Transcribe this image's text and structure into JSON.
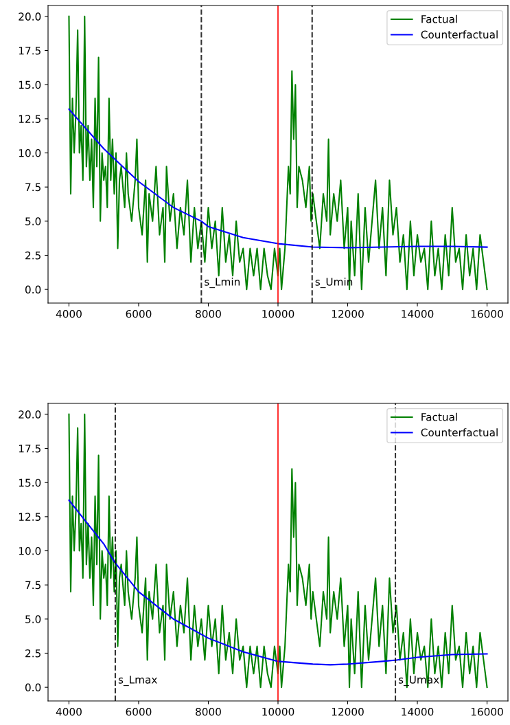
{
  "chart_data": [
    {
      "type": "line",
      "xlim": [
        3400,
        16600
      ],
      "ylim": [
        -1,
        20.8
      ],
      "xticks": [
        4000,
        6000,
        8000,
        10000,
        12000,
        14000,
        16000
      ],
      "yticks": [
        {
          "value": 0,
          "label": "0.0"
        },
        {
          "value": 2.5,
          "label": "2.5"
        },
        {
          "value": 5,
          "label": "5.0"
        },
        {
          "value": 7.5,
          "label": "7.5"
        },
        {
          "value": 10,
          "label": "10.0"
        },
        {
          "value": 12.5,
          "label": "12.5"
        },
        {
          "value": 15,
          "label": "15.0"
        },
        {
          "value": 17.5,
          "label": "17.5"
        },
        {
          "value": 20,
          "label": "20.0"
        }
      ],
      "legend": "top right",
      "grid": false,
      "series": [
        {
          "name": "Factual",
          "color": "#008000",
          "x": [
            4000,
            4050,
            4100,
            4150,
            4200,
            4250,
            4300,
            4350,
            4400,
            4450,
            4500,
            4550,
            4600,
            4650,
            4700,
            4750,
            4800,
            4850,
            4900,
            4950,
            5000,
            5050,
            5100,
            5150,
            5200,
            5250,
            5300,
            5350,
            5400,
            5450,
            5500,
            5600,
            5650,
            5700,
            5800,
            5900,
            5950,
            6000,
            6100,
            6200,
            6250,
            6300,
            6400,
            6500,
            6600,
            6700,
            6750,
            6800,
            6900,
            7000,
            7100,
            7200,
            7300,
            7400,
            7500,
            7600,
            7700,
            7800,
            7900,
            8000,
            8100,
            8200,
            8300,
            8400,
            8500,
            8600,
            8700,
            8800,
            8900,
            9000,
            9100,
            9200,
            9300,
            9400,
            9500,
            9600,
            9700,
            9800,
            9900,
            10000,
            10050,
            10100,
            10200,
            10250,
            10300,
            10350,
            10400,
            10450,
            10500,
            10550,
            10600,
            10700,
            10800,
            10900,
            10950,
            11000,
            11100,
            11200,
            11300,
            11400,
            11450,
            11500,
            11600,
            11700,
            11800,
            11900,
            12000,
            12050,
            12100,
            12200,
            12300,
            12400,
            12500,
            12600,
            12700,
            12800,
            12900,
            13000,
            13100,
            13200,
            13300,
            13400,
            13500,
            13600,
            13700,
            13800,
            13900,
            14000,
            14100,
            14200,
            14300,
            14400,
            14500,
            14600,
            14700,
            14800,
            14900,
            15000,
            15100,
            15200,
            15300,
            15400,
            15500,
            15600,
            15700,
            15800,
            15900,
            16000
          ],
          "values": [
            20,
            7,
            14,
            10,
            13,
            19,
            10,
            12,
            8,
            20,
            9,
            12,
            8,
            11,
            6,
            14,
            9,
            17,
            5,
            10,
            8,
            9,
            6,
            14,
            8,
            11,
            7,
            10,
            3,
            8,
            9,
            6,
            10,
            7,
            5,
            8,
            11,
            6,
            4,
            8,
            2,
            7,
            5,
            9,
            4,
            6,
            2,
            9,
            5,
            7,
            3,
            6,
            4,
            8,
            2,
            6,
            3,
            5,
            2,
            6,
            3,
            5,
            1,
            6,
            2,
            4,
            1,
            5,
            2,
            3,
            0,
            3,
            1,
            3,
            0,
            3,
            1,
            0,
            3,
            1,
            3,
            0,
            3,
            6,
            9,
            7,
            16,
            11,
            15,
            6,
            9,
            8,
            6,
            9,
            5,
            7,
            5,
            3,
            7,
            5,
            11,
            4,
            7,
            5,
            8,
            3,
            6,
            0,
            5,
            1,
            7,
            0,
            6,
            2,
            5,
            8,
            3,
            6,
            1,
            8,
            4,
            6,
            2,
            4,
            0,
            5,
            1,
            4,
            2,
            3,
            0,
            5,
            1,
            3,
            0,
            4,
            1,
            6,
            2,
            3,
            0,
            4,
            1,
            3,
            0,
            4,
            2,
            0
          ]
        },
        {
          "name": "Counterfactual",
          "color": "#0000ff",
          "x": [
            4000,
            5000,
            6000,
            7000,
            7800,
            8000,
            9000,
            10000,
            11000,
            12000,
            13000,
            14000,
            15000,
            16000
          ],
          "values": [
            13.2,
            10.3,
            7.9,
            6.0,
            5.0,
            4.6,
            3.8,
            3.35,
            3.1,
            3.05,
            3.1,
            3.15,
            3.15,
            3.1
          ]
        }
      ],
      "ref_lines": [
        {
          "axis": "x",
          "value": 7800,
          "label": "s_Lmin",
          "color": "#000000",
          "line_style": "dashed"
        },
        {
          "axis": "x",
          "value": 10000,
          "label": null,
          "color": "#ff0000",
          "line_style": "solid"
        },
        {
          "axis": "x",
          "value": 10980,
          "label": "s_Umin",
          "color": "#000000",
          "line_style": "dashed"
        }
      ]
    },
    {
      "type": "line",
      "xlim": [
        3400,
        16600
      ],
      "ylim": [
        -1,
        20.8
      ],
      "xticks": [
        4000,
        6000,
        8000,
        10000,
        12000,
        14000,
        16000
      ],
      "yticks": [
        {
          "value": 0,
          "label": "0.0"
        },
        {
          "value": 2.5,
          "label": "2.5"
        },
        {
          "value": 5,
          "label": "5.0"
        },
        {
          "value": 7.5,
          "label": "7.5"
        },
        {
          "value": 10,
          "label": "10.0"
        },
        {
          "value": 12.5,
          "label": "12.5"
        },
        {
          "value": 15,
          "label": "15.0"
        },
        {
          "value": 17.5,
          "label": "17.5"
        },
        {
          "value": 20,
          "label": "20.0"
        }
      ],
      "legend": "top right",
      "grid": false,
      "series": [
        {
          "name": "Factual",
          "color": "#008000",
          "x": [
            4000,
            4050,
            4100,
            4150,
            4200,
            4250,
            4300,
            4350,
            4400,
            4450,
            4500,
            4550,
            4600,
            4650,
            4700,
            4750,
            4800,
            4850,
            4900,
            4950,
            5000,
            5050,
            5100,
            5150,
            5200,
            5250,
            5300,
            5350,
            5400,
            5450,
            5500,
            5600,
            5650,
            5700,
            5800,
            5900,
            5950,
            6000,
            6100,
            6200,
            6250,
            6300,
            6400,
            6500,
            6600,
            6700,
            6750,
            6800,
            6900,
            7000,
            7100,
            7200,
            7300,
            7400,
            7500,
            7600,
            7700,
            7800,
            7900,
            8000,
            8100,
            8200,
            8300,
            8400,
            8500,
            8600,
            8700,
            8800,
            8900,
            9000,
            9100,
            9200,
            9300,
            9400,
            9500,
            9600,
            9700,
            9800,
            9900,
            10000,
            10050,
            10100,
            10200,
            10250,
            10300,
            10350,
            10400,
            10450,
            10500,
            10550,
            10600,
            10700,
            10800,
            10900,
            10950,
            11000,
            11100,
            11200,
            11300,
            11400,
            11450,
            11500,
            11600,
            11700,
            11800,
            11900,
            12000,
            12050,
            12100,
            12200,
            12300,
            12400,
            12500,
            12600,
            12700,
            12800,
            12900,
            13000,
            13100,
            13200,
            13300,
            13400,
            13500,
            13600,
            13700,
            13800,
            13900,
            14000,
            14100,
            14200,
            14300,
            14400,
            14500,
            14600,
            14700,
            14800,
            14900,
            15000,
            15100,
            15200,
            15300,
            15400,
            15500,
            15600,
            15700,
            15800,
            15900,
            16000
          ],
          "values": [
            20,
            7,
            14,
            10,
            13,
            19,
            10,
            12,
            8,
            20,
            9,
            12,
            8,
            11,
            6,
            14,
            9,
            17,
            5,
            10,
            8,
            9,
            6,
            14,
            8,
            11,
            7,
            10,
            3,
            8,
            9,
            6,
            10,
            7,
            5,
            8,
            11,
            6,
            4,
            8,
            2,
            7,
            5,
            9,
            4,
            6,
            2,
            9,
            5,
            7,
            3,
            6,
            4,
            8,
            2,
            6,
            3,
            5,
            2,
            6,
            3,
            5,
            1,
            6,
            2,
            4,
            1,
            5,
            2,
            3,
            0,
            3,
            1,
            3,
            0,
            3,
            1,
            0,
            3,
            1,
            3,
            0,
            3,
            6,
            9,
            7,
            16,
            11,
            15,
            6,
            9,
            8,
            6,
            9,
            5,
            7,
            5,
            3,
            7,
            5,
            11,
            4,
            7,
            5,
            8,
            3,
            6,
            0,
            5,
            1,
            7,
            0,
            6,
            2,
            5,
            8,
            3,
            6,
            1,
            8,
            4,
            6,
            2,
            4,
            0,
            5,
            1,
            4,
            2,
            3,
            0,
            5,
            1,
            3,
            0,
            4,
            1,
            6,
            2,
            3,
            0,
            4,
            1,
            3,
            0,
            4,
            2,
            0
          ]
        },
        {
          "name": "Counterfactual",
          "color": "#0000ff",
          "x": [
            4000,
            5000,
            5300,
            6000,
            7000,
            8000,
            9000,
            10000,
            11000,
            11500,
            12000,
            13000,
            13400,
            14000,
            15000,
            16000
          ],
          "values": [
            13.7,
            10.5,
            9.2,
            7.0,
            5.0,
            3.6,
            2.6,
            1.9,
            1.7,
            1.65,
            1.7,
            1.9,
            2.0,
            2.2,
            2.4,
            2.45
          ]
        }
      ],
      "ref_lines": [
        {
          "axis": "x",
          "value": 5330,
          "label": "s_Lmax",
          "color": "#000000",
          "line_style": "dashed"
        },
        {
          "axis": "x",
          "value": 10000,
          "label": null,
          "color": "#ff0000",
          "line_style": "solid"
        },
        {
          "axis": "x",
          "value": 13370,
          "label": "s_Umax",
          "color": "#000000",
          "line_style": "dashed"
        }
      ]
    }
  ]
}
